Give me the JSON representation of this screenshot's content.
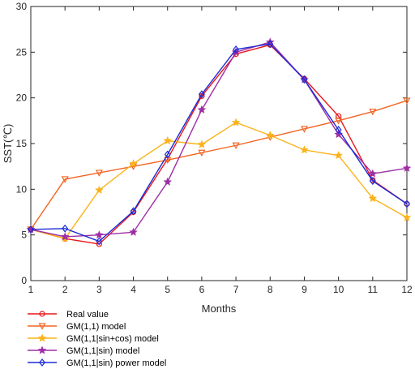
{
  "chart_data": {
    "type": "line",
    "xlabel": "Months",
    "ylabel": "SST(℃)",
    "x": [
      1,
      2,
      3,
      4,
      5,
      6,
      7,
      8,
      9,
      10,
      11,
      12
    ],
    "xlim": [
      1,
      12
    ],
    "ylim": [
      0,
      30
    ],
    "xticks": [
      "1",
      "2",
      "3",
      "4",
      "5",
      "6",
      "7",
      "8",
      "9",
      "10",
      "11",
      "12"
    ],
    "yticks": [
      "0",
      "5",
      "10",
      "15",
      "20",
      "25",
      "30"
    ],
    "grid": false,
    "legend_position": "bottom-left, below axes",
    "series": [
      {
        "name": "Real value",
        "color": "#e8161b",
        "marker": "circle",
        "values": [
          5.6,
          4.6,
          4.0,
          7.5,
          13.3,
          20.2,
          24.8,
          25.8,
          22.1,
          18.0,
          11.0,
          8.4
        ]
      },
      {
        "name": "GM(1,1) model",
        "color": "#f26522",
        "marker": "triangle-down",
        "values": [
          5.6,
          11.1,
          11.8,
          12.5,
          13.2,
          14.0,
          14.8,
          15.7,
          16.6,
          17.5,
          18.5,
          19.7
        ]
      },
      {
        "name": "GM(1,1|sin+cos) model",
        "color": "#fbb31a",
        "marker": "star",
        "values": [
          5.6,
          4.6,
          9.9,
          12.8,
          15.3,
          14.9,
          17.3,
          15.9,
          14.3,
          13.7,
          9.0,
          6.9
        ]
      },
      {
        "name": "GM(1,1|sin) model",
        "color": "#9e2fa6",
        "marker": "star",
        "values": [
          5.6,
          4.8,
          5.0,
          5.3,
          10.8,
          18.7,
          25.0,
          26.1,
          22.0,
          16.0,
          11.7,
          12.3
        ]
      },
      {
        "name": "GM(1,1|sin) power model",
        "color": "#1c2bd6",
        "marker": "diamond",
        "values": [
          5.6,
          5.7,
          4.3,
          7.6,
          13.8,
          20.4,
          25.3,
          25.9,
          22.0,
          16.5,
          10.9,
          8.4
        ]
      }
    ]
  }
}
